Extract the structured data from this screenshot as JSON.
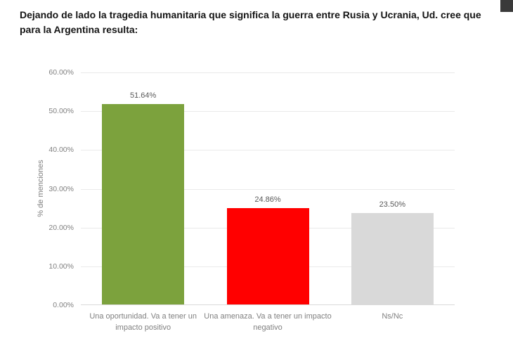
{
  "page": {
    "title": "Dejando de lado la tragedia humanitaria que significa la guerra entre Rusia y Ucrania, Ud. cree que para la Argentina resulta:"
  },
  "decorations": {
    "corner_square_color": "#3a3a3a"
  },
  "chart_data": {
    "type": "bar",
    "title": "",
    "categories": [
      "Una oportunidad. Va a tener un impacto positivo",
      "Una amenaza. Va a tener un impacto negativo",
      "Ns/Nc"
    ],
    "values": [
      51.64,
      24.86,
      23.5
    ],
    "value_labels": [
      "51.64%",
      "24.86%",
      "23.50%"
    ],
    "bar_colors": [
      "#7ca23d",
      "#ff0000",
      "#d9d9d9"
    ],
    "xlabel": "",
    "ylabel": "% de menciones",
    "ylim": [
      0,
      60
    ],
    "ytick_values": [
      0,
      10,
      20,
      30,
      40,
      50,
      60
    ],
    "ytick_labels": [
      "0.00%",
      "10.00%",
      "20.00%",
      "30.00%",
      "40.00%",
      "50.00%",
      "60.00%"
    ],
    "grid": "horizontal",
    "legend": "none"
  }
}
